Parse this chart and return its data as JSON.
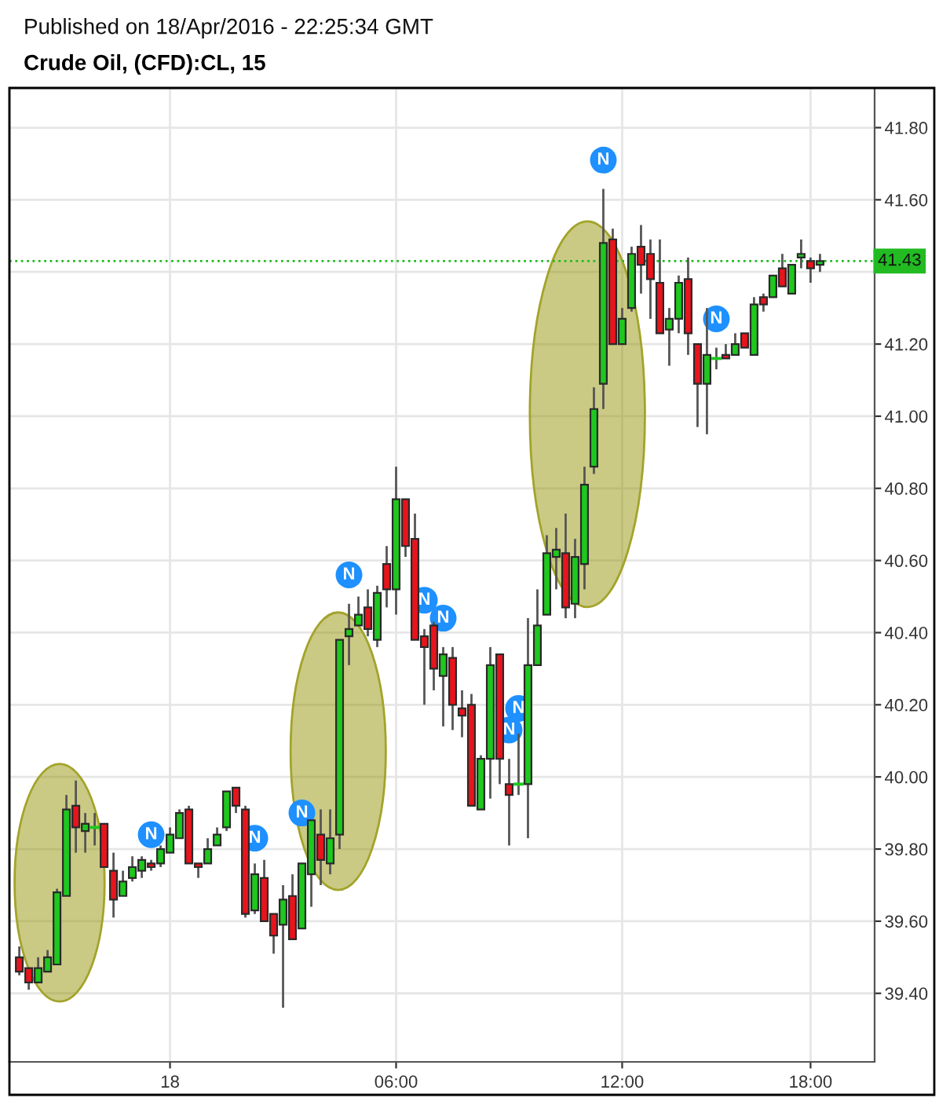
{
  "chart_data": {
    "type": "candlestick",
    "title": "Crude Oil, (CFD):CL, 15",
    "annotations": [
      "Published on 18/Apr/2016 - 22:25:34 GMT"
    ],
    "categories": [
      null,
      null,
      null,
      null,
      null,
      null,
      null,
      null,
      null,
      null,
      null,
      null,
      null,
      null,
      null,
      null,
      "18",
      null,
      null,
      null,
      null,
      null,
      null,
      null,
      null,
      null,
      null,
      null,
      null,
      null,
      null,
      null,
      null,
      null,
      null,
      null,
      null,
      null,
      null,
      null,
      "06:00",
      null,
      null,
      null,
      null,
      null,
      null,
      null,
      null,
      null,
      null,
      null,
      null,
      null,
      null,
      null,
      null,
      null,
      null,
      null,
      null,
      null,
      null,
      null,
      "12:00",
      null,
      null,
      null,
      null,
      null,
      null,
      null,
      null,
      null,
      null,
      null,
      null,
      null,
      null,
      null,
      null,
      null,
      null,
      null,
      "18:00",
      null
    ],
    "ohlc": [
      [
        39.5,
        39.53,
        39.45,
        39.46
      ],
      [
        39.47,
        39.47,
        39.41,
        39.43
      ],
      [
        39.43,
        39.5,
        39.43,
        39.47
      ],
      [
        39.46,
        39.52,
        39.46,
        39.5
      ],
      [
        39.48,
        39.69,
        39.48,
        39.68
      ],
      [
        39.67,
        39.95,
        39.67,
        39.91
      ],
      [
        39.92,
        39.99,
        39.79,
        39.86
      ],
      [
        39.85,
        39.9,
        39.79,
        39.87
      ],
      [
        39.86,
        39.9,
        39.81,
        39.86
      ],
      [
        39.87,
        39.87,
        39.75,
        39.75
      ],
      [
        39.74,
        39.79,
        39.61,
        39.66
      ],
      [
        39.67,
        39.74,
        39.67,
        39.71
      ],
      [
        39.72,
        39.78,
        39.71,
        39.75
      ],
      [
        39.74,
        39.78,
        39.72,
        39.77
      ],
      [
        39.76,
        39.77,
        39.74,
        39.75
      ],
      [
        39.76,
        39.81,
        39.75,
        39.8
      ],
      [
        39.79,
        39.86,
        39.79,
        39.84
      ],
      [
        39.83,
        39.91,
        39.83,
        39.9
      ],
      [
        39.91,
        39.92,
        39.76,
        39.76
      ],
      [
        39.76,
        39.76,
        39.72,
        39.75
      ],
      [
        39.76,
        39.83,
        39.76,
        39.8
      ],
      [
        39.81,
        39.86,
        39.81,
        39.84
      ],
      [
        39.86,
        39.96,
        39.85,
        39.96
      ],
      [
        39.97,
        39.97,
        39.9,
        39.92
      ],
      [
        39.91,
        39.92,
        39.61,
        39.62
      ],
      [
        39.63,
        39.76,
        39.62,
        39.73
      ],
      [
        39.72,
        39.77,
        39.6,
        39.6
      ],
      [
        39.62,
        39.62,
        39.51,
        39.56
      ],
      [
        39.59,
        39.7,
        39.36,
        39.66
      ],
      [
        39.67,
        39.73,
        39.55,
        39.55
      ],
      [
        39.58,
        39.76,
        39.58,
        39.76
      ],
      [
        39.73,
        39.88,
        39.64,
        39.88
      ],
      [
        39.84,
        39.91,
        39.7,
        39.77
      ],
      [
        39.76,
        39.91,
        39.73,
        39.83
      ],
      [
        39.84,
        40.38,
        39.8,
        40.38
      ],
      [
        40.39,
        40.48,
        40.31,
        40.41
      ],
      [
        40.42,
        40.5,
        40.42,
        40.45
      ],
      [
        40.47,
        40.52,
        40.39,
        40.41
      ],
      [
        40.38,
        40.53,
        40.36,
        40.51
      ],
      [
        40.59,
        40.64,
        40.47,
        40.52
      ],
      [
        40.52,
        40.86,
        40.45,
        40.77
      ],
      [
        40.77,
        40.77,
        40.61,
        40.64
      ],
      [
        40.66,
        40.73,
        40.38,
        40.38
      ],
      [
        40.39,
        40.41,
        40.2,
        40.36
      ],
      [
        40.42,
        40.43,
        40.24,
        40.3
      ],
      [
        40.28,
        40.36,
        40.14,
        40.34
      ],
      [
        40.33,
        40.36,
        40.13,
        40.2
      ],
      [
        40.19,
        40.24,
        40.11,
        40.17
      ],
      [
        40.2,
        40.23,
        39.92,
        39.92
      ],
      [
        39.91,
        40.06,
        39.91,
        40.05
      ],
      [
        40.05,
        40.36,
        39.94,
        40.31
      ],
      [
        40.34,
        40.34,
        39.98,
        40.05
      ],
      [
        39.98,
        40.05,
        39.81,
        39.95
      ],
      [
        39.98,
        40.12,
        39.95,
        39.98
      ],
      [
        39.98,
        40.44,
        39.83,
        40.31
      ],
      [
        40.31,
        40.52,
        40.31,
        40.42
      ],
      [
        40.45,
        40.67,
        40.45,
        40.62
      ],
      [
        40.61,
        40.69,
        40.52,
        40.63
      ],
      [
        40.62,
        40.73,
        40.44,
        40.47
      ],
      [
        40.48,
        40.66,
        40.44,
        40.61
      ],
      [
        40.59,
        40.86,
        40.52,
        40.81
      ],
      [
        40.86,
        41.08,
        40.84,
        41.02
      ],
      [
        41.09,
        41.63,
        41.02,
        41.48
      ],
      [
        41.49,
        41.52,
        41.2,
        41.2
      ],
      [
        41.2,
        41.3,
        41.2,
        41.27
      ],
      [
        41.3,
        41.47,
        41.29,
        41.45
      ],
      [
        41.47,
        41.53,
        41.34,
        41.42
      ],
      [
        41.45,
        41.49,
        41.27,
        41.38
      ],
      [
        41.37,
        41.49,
        41.23,
        41.23
      ],
      [
        41.24,
        41.3,
        41.14,
        41.27
      ],
      [
        41.27,
        41.39,
        41.23,
        41.37
      ],
      [
        41.38,
        41.44,
        41.17,
        41.23
      ],
      [
        41.2,
        41.2,
        40.97,
        41.09
      ],
      [
        41.09,
        41.3,
        40.95,
        41.17
      ],
      [
        41.16,
        41.19,
        41.13,
        41.16
      ],
      [
        41.17,
        41.2,
        41.16,
        41.16
      ],
      [
        41.17,
        41.23,
        41.17,
        41.2
      ],
      [
        41.23,
        41.23,
        41.19,
        41.19
      ],
      [
        41.17,
        41.33,
        41.17,
        41.31
      ],
      [
        41.33,
        41.34,
        41.29,
        41.31
      ],
      [
        41.33,
        41.39,
        41.33,
        41.39
      ],
      [
        41.41,
        41.45,
        41.36,
        41.36
      ],
      [
        41.34,
        41.42,
        41.34,
        41.42
      ],
      [
        41.44,
        41.49,
        41.41,
        41.45
      ],
      [
        41.43,
        41.44,
        41.37,
        41.41
      ],
      [
        41.42,
        41.45,
        41.4,
        41.43
      ]
    ],
    "colors": [
      "#e8141c",
      "#e8141c",
      "#1ec81e",
      "#1ec81e",
      "#1ec81e",
      "#1ec81e",
      "#e8141c",
      "#1ec81e",
      "#1ec81e",
      "#e8141c",
      "#e8141c",
      "#1ec81e",
      "#1ec81e",
      "#1ec81e",
      "#e8141c",
      "#1ec81e",
      "#1ec81e",
      "#1ec81e",
      "#e8141c",
      "#e8141c",
      "#1ec81e",
      "#1ec81e",
      "#1ec81e",
      "#e8141c",
      "#e8141c",
      "#1ec81e",
      "#e8141c",
      "#e8141c",
      "#1ec81e",
      "#e8141c",
      "#1ec81e",
      "#1ec81e",
      "#e8141c",
      "#1ec81e",
      "#1ec81e",
      "#1ec81e",
      "#1ec81e",
      "#e8141c",
      "#1ec81e",
      "#e8141c",
      "#1ec81e",
      "#e8141c",
      "#e8141c",
      "#e8141c",
      "#e8141c",
      "#1ec81e",
      "#e8141c",
      "#e8141c",
      "#e8141c",
      "#1ec81e",
      "#1ec81e",
      "#e8141c",
      "#e8141c",
      "#1ec81e",
      "#1ec81e",
      "#1ec81e",
      "#1ec81e",
      "#1ec81e",
      "#e8141c",
      "#1ec81e",
      "#1ec81e",
      "#1ec81e",
      "#1ec81e",
      "#e8141c",
      "#1ec81e",
      "#1ec81e",
      "#e8141c",
      "#e8141c",
      "#e8141c",
      "#1ec81e",
      "#1ec81e",
      "#e8141c",
      "#e8141c",
      "#1ec81e",
      "#1ec81e",
      "#e8141c",
      "#1ec81e",
      "#e8141c",
      "#1ec81e",
      "#e8141c",
      "#1ec81e",
      "#e8141c",
      "#1ec81e",
      "#1ec81e",
      "#e8141c",
      "#1ec81e"
    ],
    "series": [
      {
        "type": "scatter",
        "color": "#1e90ff",
        "marker": "circle",
        "values": [
          null,
          null,
          null,
          null,
          null,
          null,
          null,
          null,
          null,
          null,
          null,
          null,
          null,
          null,
          39.84,
          null,
          null,
          null,
          null,
          null,
          null,
          null,
          null,
          null,
          null,
          39.83,
          null,
          null,
          null,
          null,
          39.9,
          null,
          null,
          null,
          null,
          40.56,
          null,
          null,
          null,
          null,
          null,
          null,
          null,
          40.49,
          null,
          40.44,
          null,
          null,
          null,
          null,
          null,
          null,
          40.13,
          40.19,
          null,
          null,
          null,
          null,
          null,
          null,
          null,
          null,
          41.71,
          null,
          null,
          null,
          null,
          null,
          null,
          null,
          null,
          null,
          null,
          null,
          41.27,
          null,
          null,
          null,
          null,
          null,
          null,
          null,
          null,
          null,
          null,
          null
        ],
        "value_labels": [
          null,
          null,
          null,
          null,
          null,
          null,
          null,
          null,
          null,
          null,
          null,
          null,
          null,
          null,
          "N",
          null,
          null,
          null,
          null,
          null,
          null,
          null,
          null,
          null,
          null,
          "N",
          null,
          null,
          null,
          null,
          "N",
          null,
          null,
          null,
          null,
          "N",
          null,
          null,
          null,
          null,
          null,
          null,
          null,
          "N",
          null,
          "N",
          null,
          null,
          null,
          null,
          null,
          null,
          "N",
          "N",
          null,
          null,
          null,
          null,
          null,
          null,
          null,
          null,
          "N",
          null,
          null,
          null,
          null,
          null,
          null,
          null,
          null,
          null,
          null,
          null,
          "N",
          null,
          null,
          null,
          null,
          null,
          null,
          null,
          null,
          null,
          null,
          null
        ]
      }
    ],
    "ylim": [
      39.21,
      41.91
    ],
    "yticks": [
      {
        "value": 39.4,
        "label": "39.40"
      },
      {
        "value": 39.6,
        "label": "39.60"
      },
      {
        "value": 39.8,
        "label": "39.80"
      },
      {
        "value": 40.0,
        "label": "40.00"
      },
      {
        "value": 40.2,
        "label": "40.20"
      },
      {
        "value": 40.4,
        "label": "40.40"
      },
      {
        "value": 40.6,
        "label": "40.60"
      },
      {
        "value": 40.8,
        "label": "40.80"
      },
      {
        "value": 41.0,
        "label": "41.00"
      },
      {
        "value": 41.2,
        "label": "41.20"
      },
      {
        "value": 41.4,
        "label": null
      },
      {
        "value": 41.6,
        "label": "41.60"
      },
      {
        "value": 41.8,
        "label": "41.80"
      }
    ],
    "grid": true,
    "ref_lines": [
      {
        "axis": "y",
        "value": 41.43,
        "label": "41.43",
        "color": "#22bb22",
        "line_style": "dotted"
      }
    ]
  }
}
